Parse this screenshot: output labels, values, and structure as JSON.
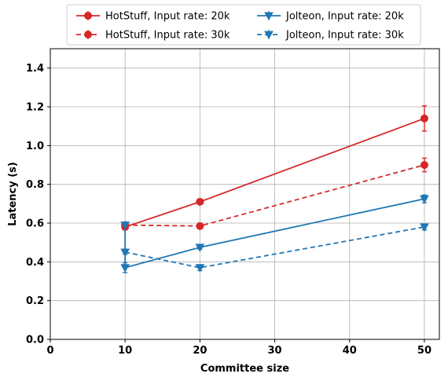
{
  "chart_data": {
    "type": "line",
    "xlabel": "Committee size",
    "ylabel": "Latency (s)",
    "xlim": [
      0,
      52
    ],
    "ylim": [
      0,
      1.5
    ],
    "xticks": [
      0,
      10,
      20,
      30,
      40,
      50
    ],
    "yticks": [
      0.0,
      0.2,
      0.4,
      0.6,
      0.8,
      1.0,
      1.2,
      1.4
    ],
    "xtick_labels": [
      "0",
      "10",
      "20",
      "30",
      "40",
      "50"
    ],
    "ytick_labels": [
      "0.0",
      "0.2",
      "0.4",
      "0.6",
      "0.8",
      "1.0",
      "1.2",
      "1.4"
    ],
    "grid": true,
    "legend_position": "top-center",
    "series": [
      {
        "name": "HotStuff, Input rate: 20k",
        "color": "#d62728",
        "linestyle": "solid",
        "marker": "circle",
        "x": [
          10,
          20,
          50
        ],
        "y": [
          0.58,
          0.71,
          1.14
        ],
        "err": [
          0.01,
          0.01,
          0.065
        ]
      },
      {
        "name": "HotStuff, Input rate: 30k",
        "color": "#d62728",
        "linestyle": "dashed",
        "marker": "circle",
        "x": [
          10,
          20,
          50
        ],
        "y": [
          0.59,
          0.585,
          0.9
        ],
        "err": [
          0.01,
          0.01,
          0.035
        ]
      },
      {
        "name": "Jolteon, Input rate: 20k",
        "color": "#1f77b4",
        "linestyle": "solid",
        "marker": "triangle-down",
        "x": [
          10,
          10,
          20,
          50
        ],
        "y": [
          0.59,
          0.37,
          0.475,
          0.725
        ],
        "err": [
          0.0,
          0.025,
          0.01,
          0.02
        ]
      },
      {
        "name": "Jolteon, Input rate: 30k",
        "color": "#1f77b4",
        "linestyle": "dashed",
        "marker": "triangle-down",
        "x": [
          10,
          20,
          50
        ],
        "y": [
          0.45,
          0.37,
          0.58
        ],
        "err": [
          0.01,
          0.015,
          0.015
        ]
      }
    ]
  }
}
